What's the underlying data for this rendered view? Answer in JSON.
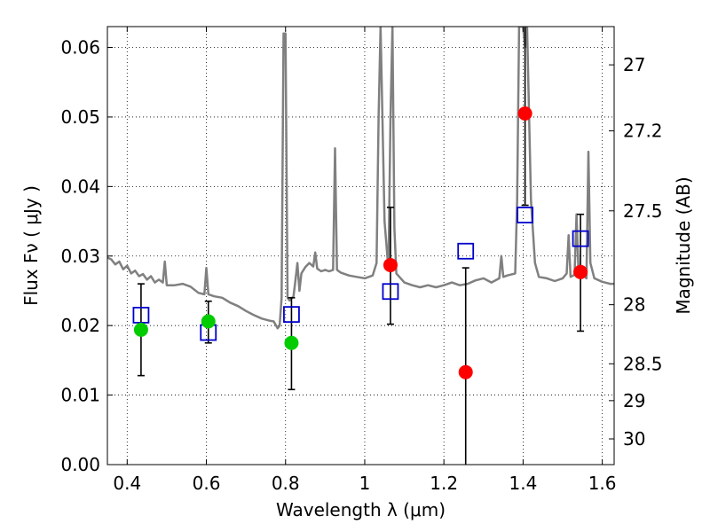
{
  "chart_data": {
    "type": "scatter",
    "title": "",
    "xlabel": "Wavelength  λ (μm)",
    "ylabel": "Flux  Fν  ( μJy )",
    "y2label": "Magnitude (AB)",
    "xlim": [
      0.35,
      1.63
    ],
    "ylim": [
      0.0,
      0.063
    ],
    "x_ticks": [
      0.4,
      0.6,
      0.8,
      1.0,
      1.2,
      1.4,
      1.6
    ],
    "x_tick_labels": [
      "0.4",
      "0.6",
      "0.8",
      "1",
      "1.2",
      "1.4",
      "1.6"
    ],
    "y_ticks": [
      0.0,
      0.01,
      0.02,
      0.03,
      0.04,
      0.05,
      0.06
    ],
    "y_tick_labels": [
      "0.00",
      "0.01",
      "0.02",
      "0.03",
      "0.04",
      "0.05",
      "0.06"
    ],
    "y2_ticks": [
      {
        "label": "27",
        "flux": 0.0575
      },
      {
        "label": "27.2",
        "flux": 0.048
      },
      {
        "label": "27.5",
        "flux": 0.0365
      },
      {
        "label": "28",
        "flux": 0.023
      },
      {
        "label": "28.5",
        "flux": 0.0145
      },
      {
        "label": "29",
        "flux": 0.0092
      },
      {
        "label": "30",
        "flux": 0.0037
      }
    ],
    "grid": true,
    "series": [
      {
        "kind": "spectrum",
        "color": "#808080",
        "points": [
          [
            0.35,
            0.0298
          ],
          [
            0.36,
            0.0295
          ],
          [
            0.37,
            0.0288
          ],
          [
            0.38,
            0.0292
          ],
          [
            0.39,
            0.0281
          ],
          [
            0.4,
            0.0286
          ],
          [
            0.41,
            0.0275
          ],
          [
            0.42,
            0.0279
          ],
          [
            0.43,
            0.0271
          ],
          [
            0.44,
            0.0274
          ],
          [
            0.45,
            0.0266
          ],
          [
            0.46,
            0.0271
          ],
          [
            0.47,
            0.0262
          ],
          [
            0.48,
            0.0266
          ],
          [
            0.49,
            0.0262
          ],
          [
            0.495,
            0.0292
          ],
          [
            0.5,
            0.0258
          ],
          [
            0.52,
            0.0258
          ],
          [
            0.54,
            0.026
          ],
          [
            0.56,
            0.0256
          ],
          [
            0.58,
            0.0247
          ],
          [
            0.595,
            0.0245
          ],
          [
            0.6,
            0.0283
          ],
          [
            0.605,
            0.0245
          ],
          [
            0.62,
            0.0242
          ],
          [
            0.64,
            0.024
          ],
          [
            0.66,
            0.0233
          ],
          [
            0.68,
            0.0228
          ],
          [
            0.7,
            0.0221
          ],
          [
            0.72,
            0.0215
          ],
          [
            0.74,
            0.021
          ],
          [
            0.76,
            0.0207
          ],
          [
            0.77,
            0.0206
          ],
          [
            0.78,
            0.0196
          ],
          [
            0.785,
            0.02
          ],
          [
            0.79,
            0.024
          ],
          [
            0.795,
            0.062
          ],
          [
            0.8,
            0.062
          ],
          [
            0.805,
            0.024
          ],
          [
            0.81,
            0.0236
          ],
          [
            0.82,
            0.0242
          ],
          [
            0.825,
            0.0265
          ],
          [
            0.83,
            0.029
          ],
          [
            0.835,
            0.025
          ],
          [
            0.84,
            0.0275
          ],
          [
            0.85,
            0.0284
          ],
          [
            0.86,
            0.029
          ],
          [
            0.87,
            0.0285
          ],
          [
            0.875,
            0.0305
          ],
          [
            0.88,
            0.0282
          ],
          [
            0.89,
            0.0278
          ],
          [
            0.9,
            0.028
          ],
          [
            0.91,
            0.0278
          ],
          [
            0.92,
            0.028
          ],
          [
            0.925,
            0.0455
          ],
          [
            0.93,
            0.028
          ],
          [
            0.94,
            0.0276
          ],
          [
            0.96,
            0.0272
          ],
          [
            0.98,
            0.027
          ],
          [
            1.0,
            0.0268
          ],
          [
            1.02,
            0.0272
          ],
          [
            1.03,
            0.029
          ],
          [
            1.035,
            0.05
          ],
          [
            1.04,
            0.063
          ],
          [
            1.05,
            0.035
          ],
          [
            1.06,
            0.028
          ],
          [
            1.065,
            0.05
          ],
          [
            1.07,
            0.063
          ],
          [
            1.075,
            0.034
          ],
          [
            1.08,
            0.0275
          ],
          [
            1.1,
            0.0262
          ],
          [
            1.12,
            0.0258
          ],
          [
            1.14,
            0.0255
          ],
          [
            1.16,
            0.0258
          ],
          [
            1.18,
            0.0255
          ],
          [
            1.2,
            0.0258
          ],
          [
            1.22,
            0.0262
          ],
          [
            1.24,
            0.0258
          ],
          [
            1.26,
            0.026
          ],
          [
            1.28,
            0.0265
          ],
          [
            1.3,
            0.0268
          ],
          [
            1.32,
            0.0262
          ],
          [
            1.34,
            0.0268
          ],
          [
            1.345,
            0.03
          ],
          [
            1.35,
            0.027
          ],
          [
            1.36,
            0.0272
          ],
          [
            1.38,
            0.0275
          ],
          [
            1.385,
            0.038
          ],
          [
            1.39,
            0.063
          ],
          [
            1.4,
            0.063
          ],
          [
            1.405,
            0.06
          ],
          [
            1.41,
            0.063
          ],
          [
            1.42,
            0.038
          ],
          [
            1.43,
            0.029
          ],
          [
            1.44,
            0.027
          ],
          [
            1.46,
            0.0268
          ],
          [
            1.48,
            0.0264
          ],
          [
            1.5,
            0.0268
          ],
          [
            1.51,
            0.0275
          ],
          [
            1.515,
            0.033
          ],
          [
            1.52,
            0.027
          ],
          [
            1.53,
            0.0273
          ],
          [
            1.535,
            0.036
          ],
          [
            1.54,
            0.0275
          ],
          [
            1.55,
            0.0275
          ],
          [
            1.56,
            0.0268
          ],
          [
            1.565,
            0.045
          ],
          [
            1.57,
            0.029
          ],
          [
            1.58,
            0.0268
          ],
          [
            1.6,
            0.0263
          ],
          [
            1.62,
            0.026
          ],
          [
            1.63,
            0.026
          ]
        ]
      },
      {
        "kind": "model_photometry",
        "marker": "open-square",
        "color": "#0000cc",
        "points": [
          [
            0.435,
            0.0215
          ],
          [
            0.605,
            0.019
          ],
          [
            0.815,
            0.0216
          ],
          [
            1.065,
            0.0249
          ],
          [
            1.255,
            0.0307
          ],
          [
            1.405,
            0.0359
          ],
          [
            1.545,
            0.0325
          ]
        ]
      },
      {
        "kind": "observed",
        "marker": "filled-circle",
        "color": "#00cc00",
        "points": [
          {
            "x": 0.435,
            "y": 0.0194,
            "ylo": 0.0128,
            "yhi": 0.026
          },
          {
            "x": 0.605,
            "y": 0.0206,
            "ylo": 0.0175,
            "yhi": 0.0235
          },
          {
            "x": 0.815,
            "y": 0.0175,
            "ylo": 0.0108,
            "yhi": 0.024
          }
        ]
      },
      {
        "kind": "observed",
        "marker": "filled-circle",
        "color": "#ff0000",
        "points": [
          {
            "x": 1.065,
            "y": 0.0287,
            "ylo": 0.0202,
            "yhi": 0.037
          },
          {
            "x": 1.255,
            "y": 0.0133,
            "ylo": 0.0,
            "yhi": 0.0283
          },
          {
            "x": 1.405,
            "y": 0.0505,
            "ylo": 0.0373,
            "yhi": 0.063
          },
          {
            "x": 1.545,
            "y": 0.0277,
            "ylo": 0.0192,
            "yhi": 0.036
          }
        ]
      }
    ]
  }
}
